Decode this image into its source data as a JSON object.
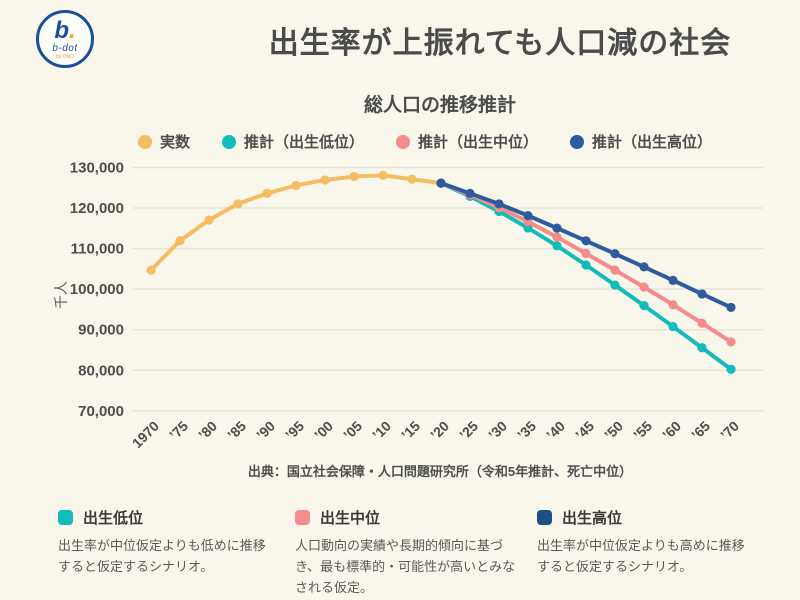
{
  "logo": {
    "mark": "b",
    "dot": ".",
    "name": "b-dot",
    "sub": "by ONO"
  },
  "header": {
    "title": "出生率が上振れても人口減の社会"
  },
  "chart_data": {
    "type": "line",
    "title": "総人口の推移推計",
    "ylabel": "千人",
    "ylim": [
      70000,
      130000
    ],
    "ytick_step": 10000,
    "grid": true,
    "legend_position": "top",
    "x_years": [
      1970,
      1975,
      1980,
      1985,
      1990,
      1995,
      2000,
      2005,
      2010,
      2015,
      2020,
      2025,
      2030,
      2035,
      2040,
      2045,
      2050,
      2055,
      2060,
      2065,
      2070
    ],
    "xtick_labels": [
      "1970",
      "’75",
      "’80",
      "’85",
      "’90",
      "’95",
      "’00",
      "’05",
      "’10",
      "’15",
      "’20",
      "’25",
      "’30",
      "’35",
      "’40",
      "’45",
      "’50",
      "’55",
      "’60",
      "’65",
      "’70"
    ],
    "series": [
      {
        "name": "実数",
        "color": "#f4bd62",
        "start_year": 1970,
        "values": [
          104665,
          111940,
          117060,
          121049,
          123611,
          125570,
          126926,
          127768,
          128057,
          127095,
          126146
        ]
      },
      {
        "name": "推計（出生低位）",
        "color": "#12bcba",
        "start_year": 2020,
        "values": [
          126146,
          122887,
          119163,
          115096,
          110683,
          105952,
          101007,
          95937,
          90774,
          85542,
          80243
        ]
      },
      {
        "name": "推計（出生中位）",
        "color": "#f68b8b",
        "start_year": 2020,
        "values": [
          126146,
          123262,
          120116,
          116639,
          112837,
          108801,
          104686,
          100508,
          96148,
          91592,
          86996
        ]
      },
      {
        "name": "推計（出生高位）",
        "color": "#2c5c9f",
        "start_year": 2020,
        "values": [
          126146,
          123624,
          121016,
          118123,
          115049,
          111926,
          108732,
          105486,
          102167,
          98820,
          95491
        ]
      }
    ]
  },
  "source": "出典：国立社会保障・人口問題研究所（令和5年推計、死亡中位）",
  "scenarios": [
    {
      "label": "出生低位",
      "color": "#12bcba",
      "description": "出生率が中位仮定よりも低めに推移すると仮定するシナリオ。"
    },
    {
      "label": "出生中位",
      "color": "#f68b8b",
      "description": "人口動向の実績や長期的傾向に基づき、最も標準的・可能性が高いとみなされる仮定。"
    },
    {
      "label": "出生高位",
      "color": "#1c4e8c",
      "description": "出生率が中位仮定よりも高めに推移すると仮定するシナリオ。"
    }
  ]
}
